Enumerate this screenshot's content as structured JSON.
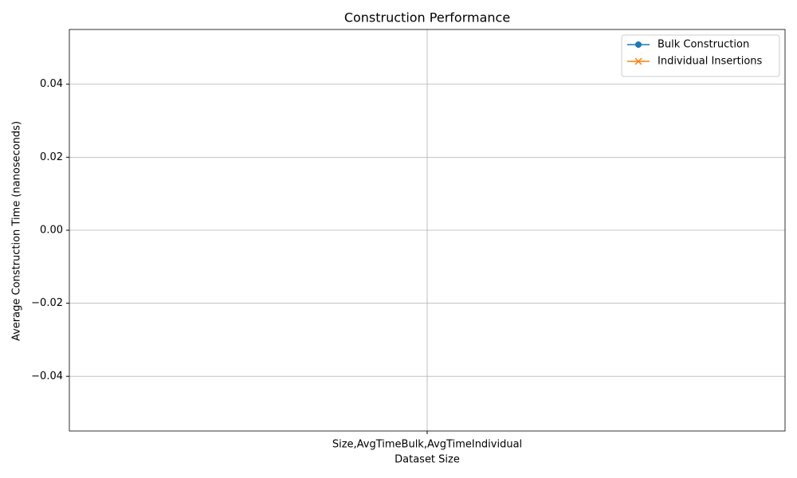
{
  "chart_data": {
    "type": "line",
    "title": "Construction Performance",
    "x_label": "Dataset Size",
    "y_label": "Average Construction Time (nanoseconds)",
    "categories": [
      "Size,AvgTimeBulk,AvgTimeIndividual"
    ],
    "series": [
      {
        "name": "Bulk Construction",
        "color": "#1f77b4",
        "marker": "o",
        "values": [
          null
        ]
      },
      {
        "name": "Individual Insertions",
        "color": "#ff7f0e",
        "marker": "x",
        "values": [
          null
        ]
      }
    ],
    "ylim": [
      -0.055,
      0.055
    ],
    "yticks": [
      {
        "value": -0.04,
        "label": "−0.04"
      },
      {
        "value": -0.02,
        "label": "−0.02"
      },
      {
        "value": 0,
        "label": "0.00"
      },
      0.02,
      0.04
    ],
    "grid": true,
    "legend": "upper right"
  }
}
